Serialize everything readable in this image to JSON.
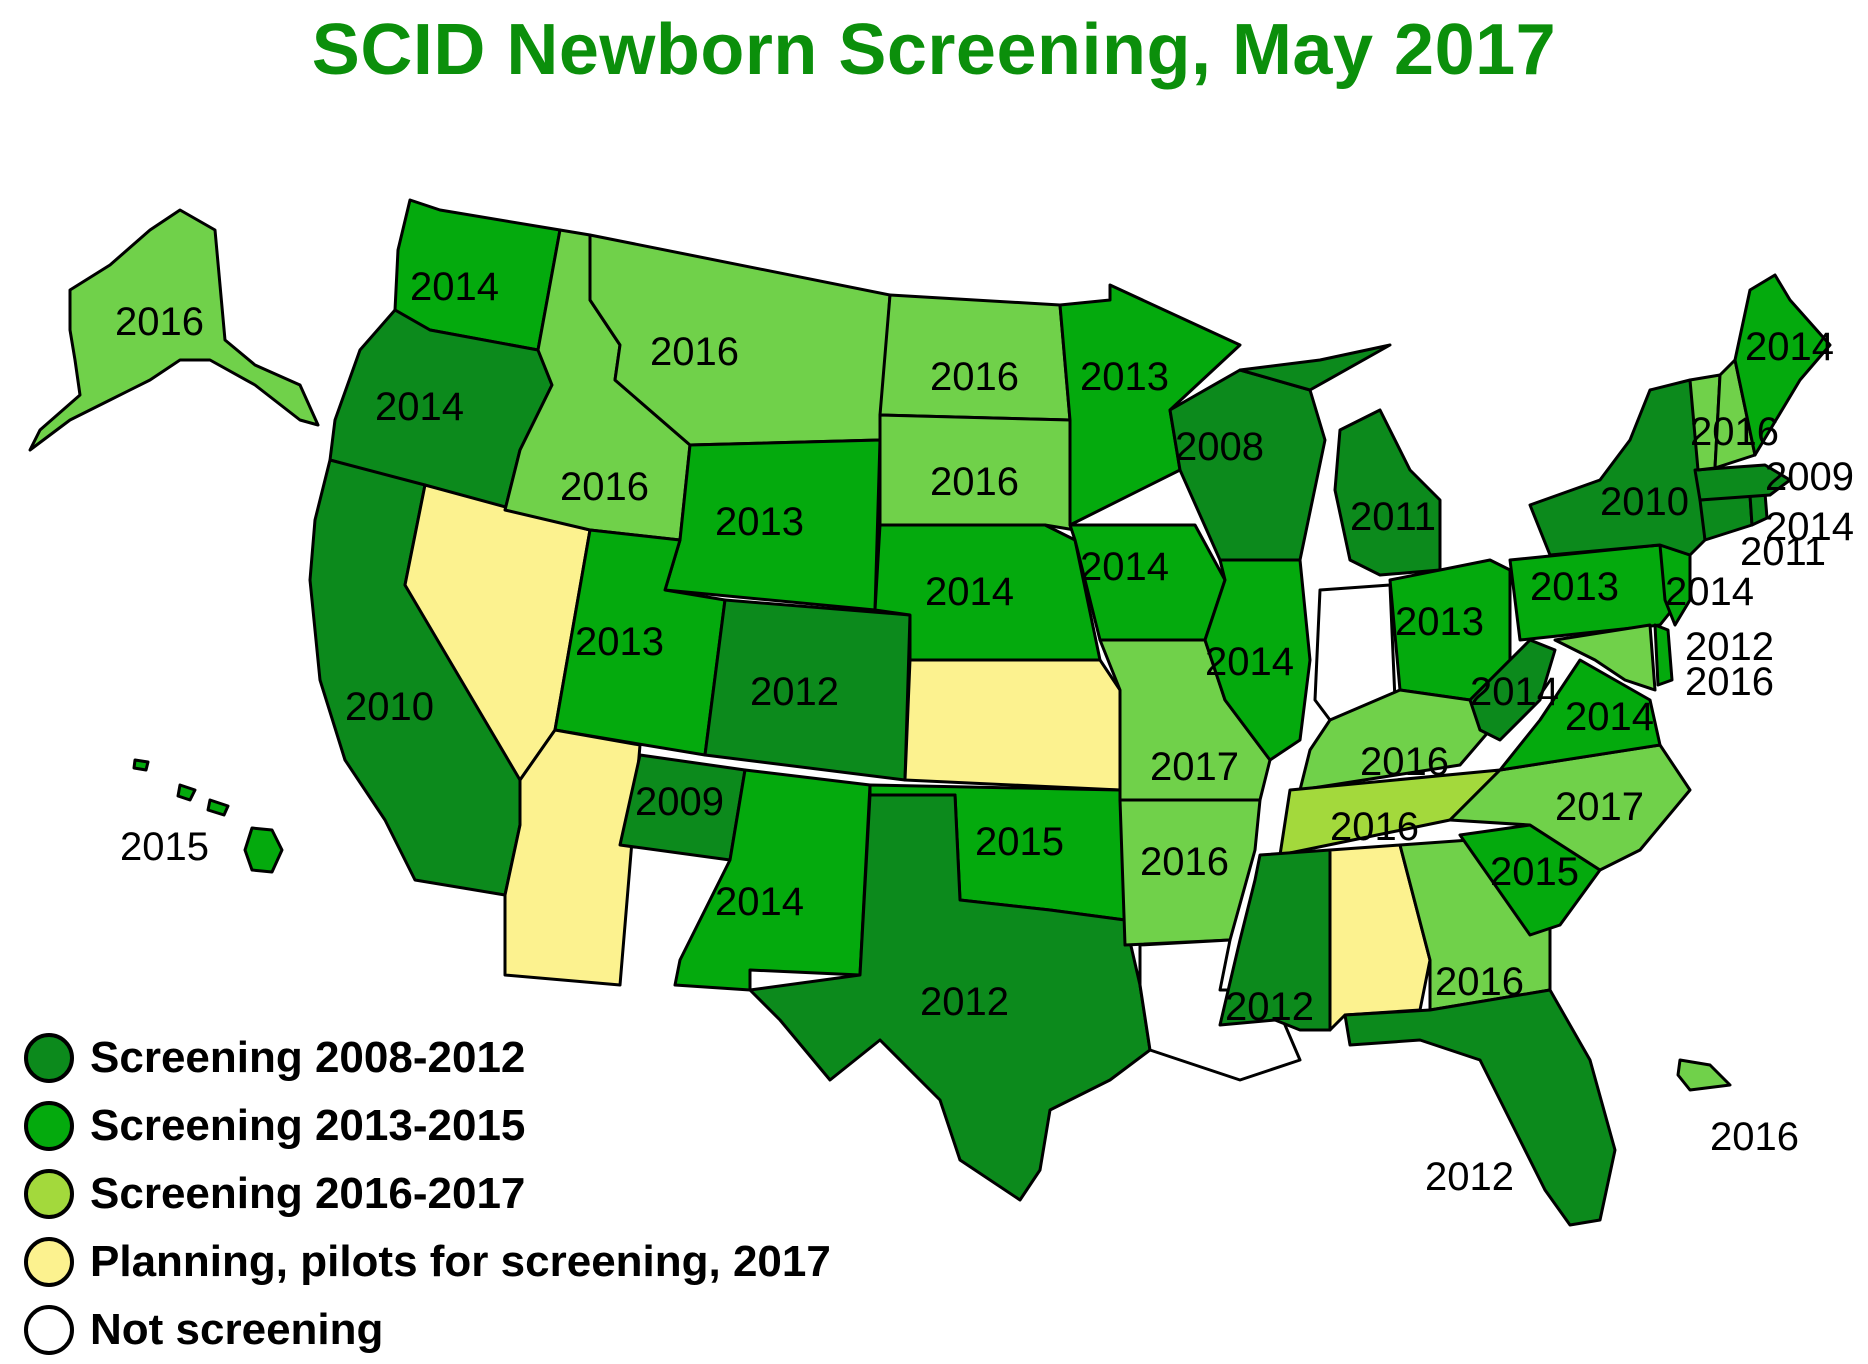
{
  "title": "SCID Newborn Screening, May 2017",
  "colors": {
    "screening_2008_2012": "#0c8a1c",
    "screening_2013_2015": "#04aa0d",
    "screening_2016_2017": "#70d14a",
    "tennessee_2016": "#a3d93c",
    "planning": "#fcf28f",
    "not_screening": "#ffffff"
  },
  "legend": [
    {
      "label": "Screening 2008-2012",
      "color": "#0c8a1c"
    },
    {
      "label": "Screening 2013-2015",
      "color": "#04aa0d"
    },
    {
      "label": "Screening 2016-2017",
      "color": "#a3d93c"
    },
    {
      "label": "Planning, pilots for screening, 2017",
      "color": "#fcf28f"
    },
    {
      "label": "Not screening",
      "color": "#ffffff"
    }
  ],
  "states": {
    "AK": "2016",
    "HI": "2015",
    "WA": "2014",
    "OR": "2014",
    "CA": "2010",
    "NV": "",
    "ID": "2016",
    "MT": "2016",
    "WY": "2013",
    "UT": "2013",
    "AZ": "",
    "CO": "2012",
    "NM": "2014",
    "ND": "2016",
    "SD": "2016",
    "NE": "2014",
    "KS": "",
    "OK": "2015",
    "TX": "2012",
    "MN": "2013",
    "IA": "2014",
    "MO": "2017",
    "AR": "2016",
    "LA": "",
    "WI": "2008",
    "IL": "2014",
    "MS": "2012",
    "MI": "2011",
    "IN": "",
    "KY": "2016",
    "TN": "2016",
    "AL": "",
    "OH": "2013",
    "WV": "2014",
    "VA": "2014",
    "NC": "2017",
    "SC": "2015",
    "GA": "2016",
    "FL": "2012",
    "PA": "2013",
    "NY": "2010",
    "ME": "2014",
    "VT": "2016",
    "NH": "2016",
    "MA": "2009",
    "RI": "2014",
    "CT": "2011",
    "NJ": "2014",
    "DE": "2012",
    "MD": "2016",
    "PR": "2016",
    "NAVAJO": "2009"
  }
}
